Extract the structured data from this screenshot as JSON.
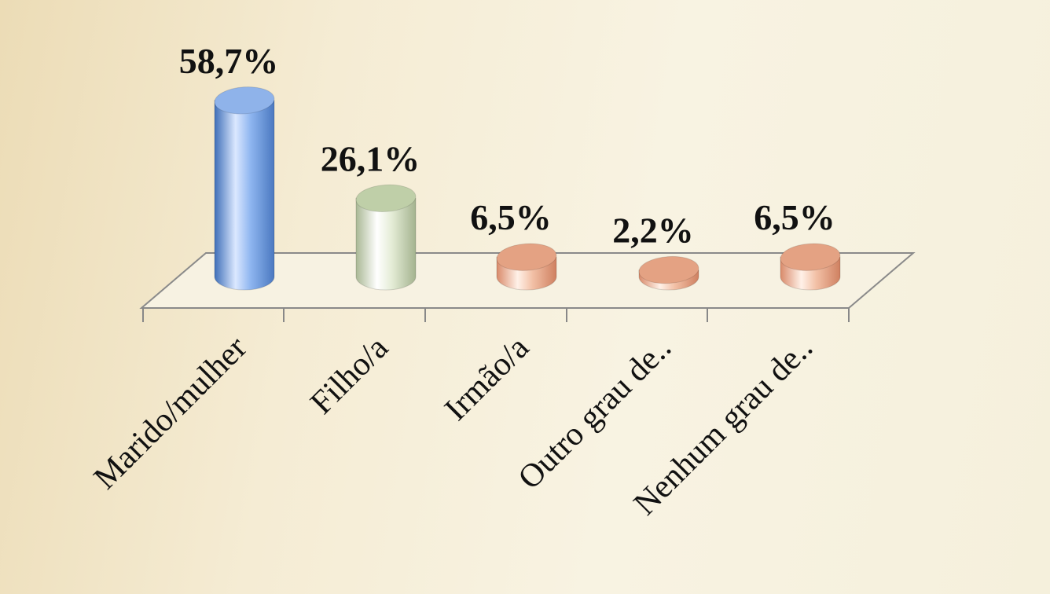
{
  "chart_data": {
    "type": "bar",
    "categories": [
      "Marido/mulher",
      "Filho/a",
      "Irmão/a",
      "Outro grau de..",
      "Nenhum grau de.."
    ],
    "values": [
      58.7,
      26.1,
      6.5,
      2.2,
      6.5
    ],
    "value_labels": [
      "58,7%",
      "26,1%",
      "6,5%",
      "2,2%",
      "6,5%"
    ],
    "ylim": [
      0,
      100
    ],
    "grid": false,
    "legend": "none",
    "colors": [
      "#6f9fe0",
      "#d6e3c2",
      "#e8a98a",
      "#e8a98a",
      "#e8a98a"
    ]
  }
}
